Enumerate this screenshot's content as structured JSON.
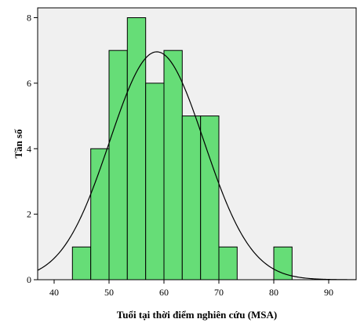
{
  "chart_data": {
    "type": "bar",
    "title": "",
    "xlabel": "Tuổi tại thời điểm nghiên cứu (MSA)",
    "ylabel": "Tần số",
    "xlim": [
      37,
      95
    ],
    "ylim": [
      0,
      8.3
    ],
    "x_ticks": [
      "40",
      "50",
      "60",
      "70",
      "80",
      "90"
    ],
    "y_ticks": [
      "0",
      "2",
      "4",
      "6",
      "8"
    ],
    "bin_width": 3.333,
    "bins": [
      {
        "start": 43.33,
        "end": 46.67,
        "count": 1
      },
      {
        "start": 46.67,
        "end": 50.0,
        "count": 4
      },
      {
        "start": 50.0,
        "end": 53.33,
        "count": 7
      },
      {
        "start": 53.33,
        "end": 56.67,
        "count": 8
      },
      {
        "start": 56.67,
        "end": 60.0,
        "count": 6
      },
      {
        "start": 60.0,
        "end": 63.33,
        "count": 7
      },
      {
        "start": 63.33,
        "end": 66.67,
        "count": 5
      },
      {
        "start": 66.67,
        "end": 70.0,
        "count": 5
      },
      {
        "start": 70.0,
        "end": 73.33,
        "count": 1
      },
      {
        "start": 80.0,
        "end": 83.33,
        "count": 1
      }
    ],
    "normal_curve": {
      "mean": 58.7,
      "sd": 8.6,
      "n": 45
    },
    "grid": false,
    "colors": {
      "plot_background": "#f0f0f0",
      "bar_fill": "#66dd77",
      "bar_stroke": "#000000",
      "curve": "#000000"
    }
  }
}
